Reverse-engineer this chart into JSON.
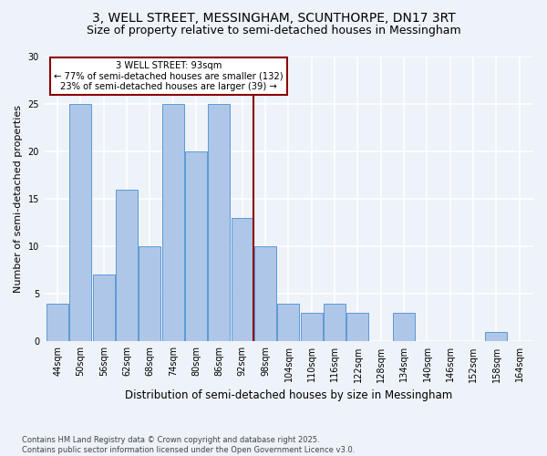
{
  "title1": "3, WELL STREET, MESSINGHAM, SCUNTHORPE, DN17 3RT",
  "title2": "Size of property relative to semi-detached houses in Messingham",
  "xlabel": "Distribution of semi-detached houses by size in Messingham",
  "ylabel": "Number of semi-detached properties",
  "categories": [
    "44sqm",
    "50sqm",
    "56sqm",
    "62sqm",
    "68sqm",
    "74sqm",
    "80sqm",
    "86sqm",
    "92sqm",
    "98sqm",
    "104sqm",
    "110sqm",
    "116sqm",
    "122sqm",
    "128sqm",
    "134sqm",
    "140sqm",
    "146sqm",
    "152sqm",
    "158sqm",
    "164sqm"
  ],
  "values": [
    4,
    25,
    7,
    16,
    10,
    25,
    20,
    25,
    13,
    10,
    4,
    3,
    4,
    3,
    0,
    3,
    0,
    0,
    0,
    1,
    0
  ],
  "bar_color": "#aec6e8",
  "bar_edge_color": "#5b9bd5",
  "vline_index": 8,
  "vline_color": "#8b0000",
  "annotation_title": "3 WELL STREET: 93sqm",
  "annotation_line1": "← 77% of semi-detached houses are smaller (132)",
  "annotation_line2": "23% of semi-detached houses are larger (39) →",
  "annotation_box_color": "#8b0000",
  "ylim": [
    0,
    30
  ],
  "yticks": [
    0,
    5,
    10,
    15,
    20,
    25,
    30
  ],
  "footnote1": "Contains HM Land Registry data © Crown copyright and database right 2025.",
  "footnote2": "Contains public sector information licensed under the Open Government Licence v3.0.",
  "bg_color": "#eef2f9",
  "grid_color": "#ffffff",
  "title1_fontsize": 10,
  "title2_fontsize": 9,
  "xlabel_fontsize": 8.5,
  "ylabel_fontsize": 8,
  "tick_fontsize": 7,
  "footnote_fontsize": 6
}
